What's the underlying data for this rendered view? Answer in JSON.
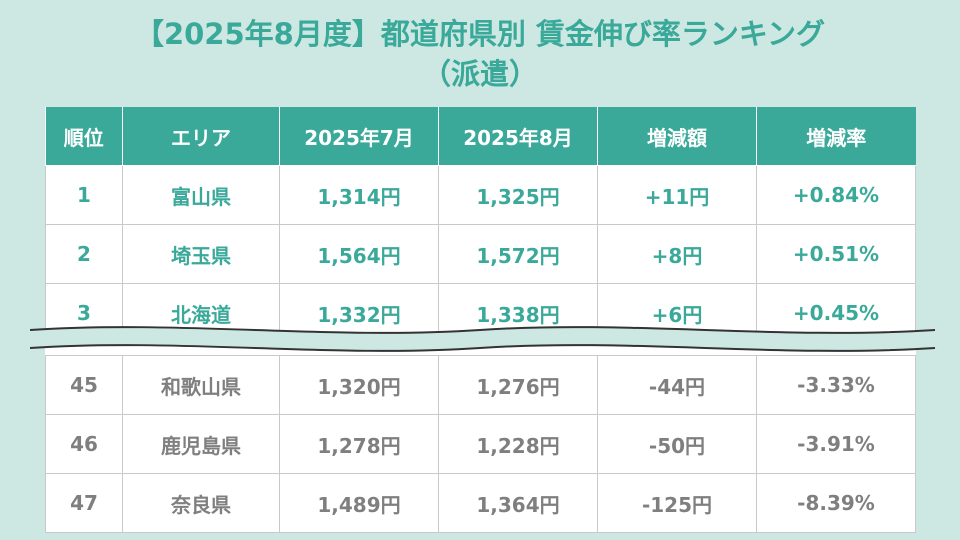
{
  "title": {
    "line1": "【2025年8月度】都道府県別 賃金伸び率ランキング",
    "line2": "（派遣）"
  },
  "colors": {
    "accent": "#3aa99a",
    "background": "#cde8e2",
    "muted_text": "#7f7f7f"
  },
  "chart_data": {
    "type": "table",
    "columns": [
      "順位",
      "エリア",
      "2025年7月",
      "2025年8月",
      "増減額",
      "増減率"
    ],
    "top_rows": [
      {
        "rank": "1",
        "area": "富山県",
        "jul": "1,314円",
        "aug": "1,325円",
        "diff": "+11円",
        "rate": "+0.84%"
      },
      {
        "rank": "2",
        "area": "埼玉県",
        "jul": "1,564円",
        "aug": "1,572円",
        "diff": "+8円",
        "rate": "+0.51%"
      },
      {
        "rank": "3",
        "area": "北海道",
        "jul": "1,332円",
        "aug": "1,338円",
        "diff": "+6円",
        "rate": "+0.45%"
      }
    ],
    "bottom_rows": [
      {
        "rank": "45",
        "area": "和歌山県",
        "jul": "1,320円",
        "aug": "1,276円",
        "diff": "-44円",
        "rate": "-3.33%"
      },
      {
        "rank": "46",
        "area": "鹿児島県",
        "jul": "1,278円",
        "aug": "1,228円",
        "diff": "-50円",
        "rate": "-3.91%"
      },
      {
        "rank": "47",
        "area": "奈良県",
        "jul": "1,489円",
        "aug": "1,364円",
        "diff": "-125円",
        "rate": "-8.39%"
      }
    ]
  }
}
